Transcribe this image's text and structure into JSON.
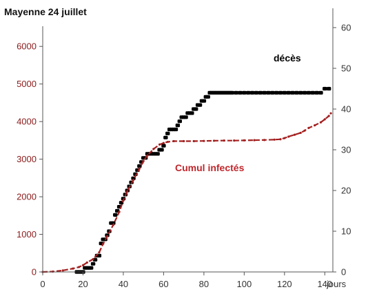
{
  "chart_data": {
    "type": "line",
    "title": "Mayenne 24 juillet",
    "xlabel": "jours",
    "x_ticks": [
      "0",
      "20",
      "40",
      "60",
      "80",
      "100",
      "120",
      "140"
    ],
    "xlim": [
      0,
      144
    ],
    "y_left_ticks": [
      "0",
      "1000",
      "2000",
      "3000",
      "4000",
      "5000",
      "6000"
    ],
    "ylim_left": [
      0,
      6500
    ],
    "y_right_ticks": [
      "0",
      "10",
      "20",
      "30",
      "40",
      "50",
      "60"
    ],
    "ylim_right": [
      0,
      60
    ],
    "colors": {
      "deces": "#000000",
      "infectes": "#a31f1f",
      "axis": "#555555"
    },
    "annotations": [
      {
        "text": "décès",
        "color": "#000000"
      },
      {
        "text": "Cumul infectés",
        "color": "#c0262b"
      }
    ],
    "series": [
      {
        "name": "décès",
        "axis": "right",
        "style": "markers",
        "x": [
          17,
          18,
          19,
          20,
          21,
          22,
          23,
          24,
          25,
          26,
          27,
          28,
          29,
          30,
          31,
          32,
          33,
          34,
          35,
          36,
          37,
          38,
          39,
          40,
          41,
          42,
          43,
          44,
          45,
          46,
          47,
          48,
          49,
          50,
          51,
          52,
          53,
          54,
          55,
          56,
          57,
          58,
          59,
          60,
          61,
          62,
          63,
          64,
          65,
          66,
          67,
          68,
          69,
          70,
          71,
          72,
          73,
          74,
          75,
          76,
          77,
          78,
          79,
          80,
          81,
          82,
          83,
          84,
          85,
          86,
          87,
          88,
          89,
          90,
          91,
          92,
          93,
          94,
          96,
          98,
          100,
          102,
          104,
          106,
          108,
          110,
          112,
          114,
          116,
          118,
          120,
          122,
          124,
          126,
          128,
          130,
          132,
          134,
          136,
          138,
          140,
          142
        ],
        "y": [
          0,
          0,
          0,
          0,
          1,
          1,
          1,
          1,
          2,
          3,
          4,
          4,
          7,
          8,
          8,
          9,
          10,
          12,
          12,
          14,
          15,
          16,
          17,
          18,
          19,
          20,
          21,
          22,
          23,
          24,
          25,
          26,
          27,
          28,
          28,
          29,
          29,
          29,
          29,
          29,
          29,
          30,
          30,
          31,
          33,
          34,
          35,
          35,
          35,
          35,
          36,
          37,
          38,
          38,
          38,
          39,
          39,
          39,
          40,
          40,
          41,
          41,
          42,
          42,
          43,
          43,
          44,
          44,
          44,
          44,
          44,
          44,
          44,
          44,
          44,
          44,
          44,
          44,
          44,
          44,
          44,
          44,
          44,
          44,
          44,
          44,
          44,
          44,
          44,
          44,
          44,
          44,
          44,
          44,
          44,
          44,
          44,
          44,
          44,
          44,
          45,
          45
        ]
      },
      {
        "name": "Cumul infectés",
        "axis": "left",
        "style": "line",
        "x": [
          0,
          5,
          10,
          15,
          18,
          20,
          22,
          25,
          28,
          30,
          32,
          35,
          38,
          40,
          42,
          45,
          48,
          50,
          52,
          55,
          58,
          60,
          62,
          65,
          70,
          75,
          80,
          85,
          90,
          95,
          100,
          105,
          110,
          115,
          118,
          120,
          122,
          125,
          128,
          130,
          132,
          135,
          138,
          140,
          142,
          143
        ],
        "y": [
          0,
          10,
          40,
          90,
          130,
          180,
          250,
          340,
          520,
          750,
          950,
          1250,
          1600,
          1900,
          2150,
          2450,
          2750,
          2950,
          3100,
          3270,
          3390,
          3430,
          3460,
          3480,
          3480,
          3480,
          3485,
          3490,
          3495,
          3495,
          3500,
          3505,
          3510,
          3520,
          3530,
          3560,
          3600,
          3650,
          3700,
          3760,
          3830,
          3900,
          3980,
          4060,
          4150,
          4220
        ]
      }
    ]
  }
}
